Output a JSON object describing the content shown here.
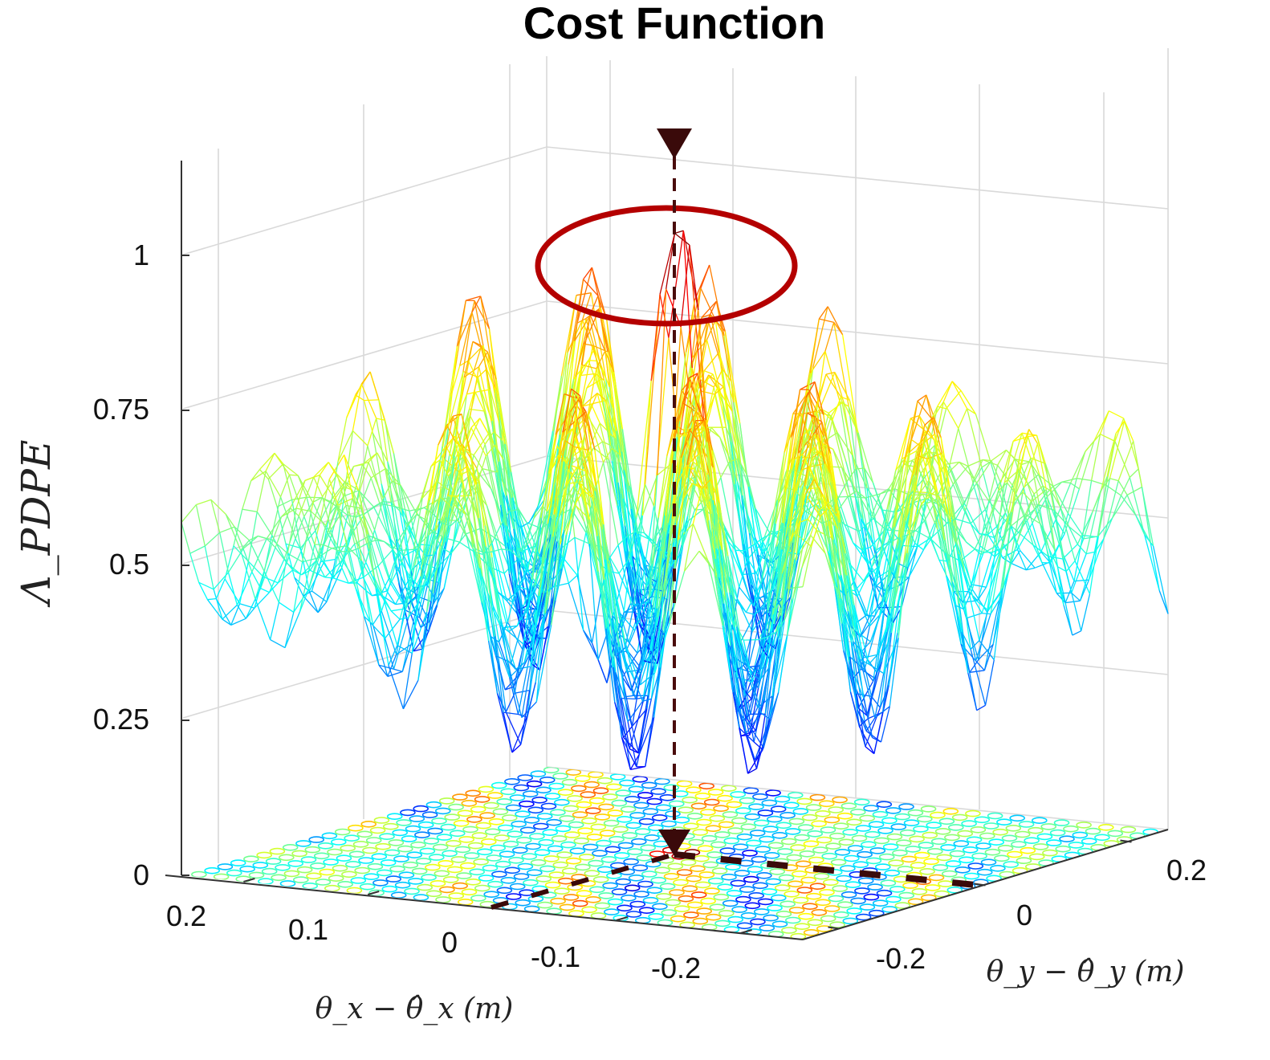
{
  "chart_data": {
    "type": "surface",
    "title": "Cost Function",
    "zlabel": "Λ_PDPE",
    "xlabel": "θ_x − θ̂_x (m)",
    "ylabel": "θ_y − θ̂_y (m)",
    "xlim": [
      -0.25,
      0.25
    ],
    "ylim": [
      -0.25,
      0.25
    ],
    "zlim": [
      0,
      1.15
    ],
    "x_ticks": [
      "0.2",
      "0.1",
      "0",
      "-0.1",
      "-0.2"
    ],
    "y_ticks": [
      "-0.2",
      "0",
      "0.2"
    ],
    "z_ticks": [
      "0",
      "0.25",
      "0.5",
      "0.75",
      "1"
    ],
    "peak": {
      "x": 0,
      "y": 0,
      "z": 1.0
    },
    "colormap": "jet",
    "grid": true,
    "annotations": [
      "peak-highlight-ellipse",
      "peak-projection-arrow",
      "contour-projection-floor"
    ],
    "colors": {
      "annotation": "#b40000",
      "marker": "#4a0c0c",
      "grid": "#d9d9d9"
    }
  }
}
